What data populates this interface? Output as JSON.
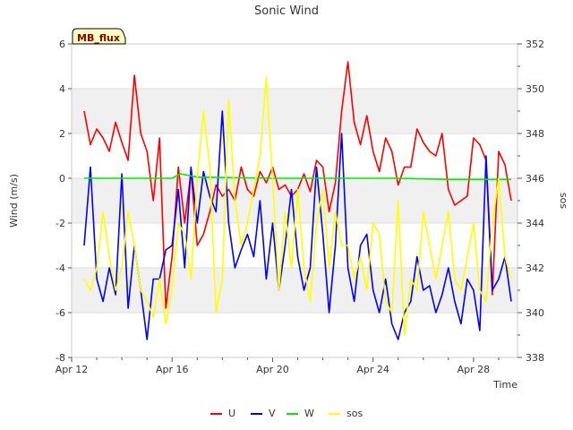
{
  "chart_data": {
    "type": "line",
    "title": "Sonic Wind",
    "xlabel": "Time",
    "ylabel_left": "Wind (m/s)",
    "ylabel_right": "sos",
    "annotation": "MB_flux",
    "x_range": [
      "2024-04-12",
      "2024-04-29T18:00"
    ],
    "x_ticks": [
      "Apr 12",
      "Apr 16",
      "Apr 20",
      "Apr 24",
      "Apr 28"
    ],
    "ylim_left": [
      -8,
      6
    ],
    "yticks_left": [
      -8,
      -6,
      -4,
      -2,
      0,
      2,
      4,
      6
    ],
    "ylim_right": [
      338,
      352
    ],
    "yticks_right": [
      338,
      340,
      342,
      344,
      346,
      348,
      350,
      352
    ],
    "grid": true,
    "legend_position": "bottom-center",
    "series": [
      {
        "name": "U",
        "color": "#ff0000",
        "axis": "left",
        "x": [
          "2024-04-12T12:00",
          "2024-04-12T18:00",
          "2024-04-13T00:00",
          "2024-04-13T06:00",
          "2024-04-13T12:00",
          "2024-04-13T18:00",
          "2024-04-14T00:00",
          "2024-04-14T06:00",
          "2024-04-14T12:00",
          "2024-04-14T18:00",
          "2024-04-15T00:00",
          "2024-04-15T06:00",
          "2024-04-15T12:00",
          "2024-04-15T18:00",
          "2024-04-16T00:00",
          "2024-04-16T06:00",
          "2024-04-16T12:00",
          "2024-04-16T18:00",
          "2024-04-17T00:00",
          "2024-04-17T06:00",
          "2024-04-17T12:00",
          "2024-04-17T18:00",
          "2024-04-18T00:00",
          "2024-04-18T06:00",
          "2024-04-18T12:00",
          "2024-04-18T18:00",
          "2024-04-19T00:00",
          "2024-04-19T06:00",
          "2024-04-19T12:00",
          "2024-04-19T18:00",
          "2024-04-20T00:00",
          "2024-04-20T06:00",
          "2024-04-20T12:00",
          "2024-04-20T18:00",
          "2024-04-21T00:00",
          "2024-04-21T06:00",
          "2024-04-21T12:00",
          "2024-04-21T18:00",
          "2024-04-22T00:00",
          "2024-04-22T06:00",
          "2024-04-22T12:00",
          "2024-04-22T18:00",
          "2024-04-23T00:00",
          "2024-04-23T06:00",
          "2024-04-23T12:00",
          "2024-04-23T18:00",
          "2024-04-24T00:00",
          "2024-04-24T06:00",
          "2024-04-24T12:00",
          "2024-04-24T18:00",
          "2024-04-25T00:00",
          "2024-04-25T06:00",
          "2024-04-25T12:00",
          "2024-04-25T18:00",
          "2024-04-26T00:00",
          "2024-04-26T06:00",
          "2024-04-26T12:00",
          "2024-04-26T18:00",
          "2024-04-27T00:00",
          "2024-04-27T06:00",
          "2024-04-27T12:00",
          "2024-04-27T18:00",
          "2024-04-28T00:00",
          "2024-04-28T06:00",
          "2024-04-28T12:00",
          "2024-04-28T18:00",
          "2024-04-29T00:00",
          "2024-04-29T06:00",
          "2024-04-29T12:00"
        ],
        "values": [
          3.0,
          1.5,
          2.2,
          1.8,
          1.2,
          2.5,
          1.6,
          0.8,
          4.6,
          2.0,
          1.2,
          -1.0,
          1.8,
          -5.8,
          -3.5,
          0.5,
          -2.0,
          0.3,
          -3.0,
          -2.5,
          -1.5,
          -0.3,
          -0.8,
          -0.5,
          -1.0,
          0.5,
          -0.5,
          -0.8,
          0.3,
          -0.2,
          0.5,
          -0.5,
          -0.3,
          -0.8,
          -0.5,
          0.2,
          -0.6,
          0.8,
          0.5,
          -1.5,
          -0.2,
          3.0,
          5.2,
          2.5,
          1.5,
          2.8,
          1.2,
          0.3,
          1.8,
          1.2,
          -0.3,
          0.5,
          0.5,
          2.2,
          1.6,
          1.2,
          1.0,
          2.0,
          -0.5,
          -1.2,
          -1.0,
          -0.8,
          1.8,
          1.5,
          0.8,
          -5.2,
          1.2,
          0.6,
          -1.0
        ]
      },
      {
        "name": "V",
        "color": "#0000ff",
        "axis": "left",
        "x": [
          "2024-04-12T12:00",
          "2024-04-12T18:00",
          "2024-04-13T00:00",
          "2024-04-13T06:00",
          "2024-04-13T12:00",
          "2024-04-13T18:00",
          "2024-04-14T00:00",
          "2024-04-14T06:00",
          "2024-04-14T12:00",
          "2024-04-14T18:00",
          "2024-04-15T00:00",
          "2024-04-15T06:00",
          "2024-04-15T12:00",
          "2024-04-15T18:00",
          "2024-04-16T00:00",
          "2024-04-16T06:00",
          "2024-04-16T12:00",
          "2024-04-16T18:00",
          "2024-04-17T00:00",
          "2024-04-17T06:00",
          "2024-04-17T12:00",
          "2024-04-17T18:00",
          "2024-04-18T00:00",
          "2024-04-18T06:00",
          "2024-04-18T12:00",
          "2024-04-18T18:00",
          "2024-04-19T00:00",
          "2024-04-19T06:00",
          "2024-04-19T12:00",
          "2024-04-19T18:00",
          "2024-04-20T00:00",
          "2024-04-20T06:00",
          "2024-04-20T12:00",
          "2024-04-20T18:00",
          "2024-04-21T00:00",
          "2024-04-21T06:00",
          "2024-04-21T12:00",
          "2024-04-21T18:00",
          "2024-04-22T00:00",
          "2024-04-22T06:00",
          "2024-04-22T12:00",
          "2024-04-22T18:00",
          "2024-04-23T00:00",
          "2024-04-23T06:00",
          "2024-04-23T12:00",
          "2024-04-23T18:00",
          "2024-04-24T00:00",
          "2024-04-24T06:00",
          "2024-04-24T12:00",
          "2024-04-24T18:00",
          "2024-04-25T00:00",
          "2024-04-25T06:00",
          "2024-04-25T12:00",
          "2024-04-25T18:00",
          "2024-04-26T00:00",
          "2024-04-26T06:00",
          "2024-04-26T12:00",
          "2024-04-26T18:00",
          "2024-04-27T00:00",
          "2024-04-27T06:00",
          "2024-04-27T12:00",
          "2024-04-27T18:00",
          "2024-04-28T00:00",
          "2024-04-28T06:00",
          "2024-04-28T12:00",
          "2024-04-28T18:00",
          "2024-04-29T00:00",
          "2024-04-29T06:00",
          "2024-04-29T12:00"
        ],
        "values": [
          -3.0,
          0.5,
          -4.5,
          -5.5,
          -4.0,
          -5.2,
          0.2,
          -5.8,
          -3.0,
          -5.0,
          -7.2,
          -4.5,
          -4.5,
          -3.2,
          -3.0,
          -0.5,
          -4.0,
          0.5,
          -2.0,
          0.3,
          -0.8,
          -1.5,
          3.0,
          -2.0,
          -4.0,
          -3.2,
          -2.5,
          -3.5,
          -1.0,
          -4.5,
          -2.0,
          -5.0,
          -3.0,
          -0.5,
          -3.5,
          -5.0,
          -4.0,
          0.5,
          -2.5,
          -6.0,
          -3.0,
          2.0,
          -4.0,
          -5.5,
          -3.0,
          -2.5,
          -5.0,
          -6.0,
          -4.5,
          -6.5,
          -7.2,
          -6.0,
          -5.5,
          -3.5,
          -5.0,
          -4.8,
          -6.0,
          -5.2,
          -4.0,
          -5.5,
          -6.5,
          -4.5,
          -5.0,
          -6.8,
          1.0,
          -5.0,
          -4.5,
          -3.5,
          -5.5
        ]
      },
      {
        "name": "W",
        "color": "#00ee00",
        "axis": "left",
        "x": [
          "2024-04-12T12:00",
          "2024-04-14T00:00",
          "2024-04-16T00:00",
          "2024-04-16T08:00",
          "2024-04-17T00:00",
          "2024-04-20T00:00",
          "2024-04-23T00:00",
          "2024-04-25T00:00",
          "2024-04-27T00:00",
          "2024-04-29T12:00"
        ],
        "values": [
          0.0,
          0.0,
          0.0,
          0.2,
          0.05,
          0.0,
          0.0,
          0.0,
          -0.05,
          -0.05
        ]
      },
      {
        "name": "sos",
        "color": "#ffff00",
        "axis": "right",
        "x": [
          "2024-04-12T12:00",
          "2024-04-12T18:00",
          "2024-04-13T00:00",
          "2024-04-13T06:00",
          "2024-04-13T12:00",
          "2024-04-13T18:00",
          "2024-04-14T00:00",
          "2024-04-14T06:00",
          "2024-04-14T12:00",
          "2024-04-14T18:00",
          "2024-04-15T00:00",
          "2024-04-15T06:00",
          "2024-04-15T12:00",
          "2024-04-15T18:00",
          "2024-04-16T00:00",
          "2024-04-16T06:00",
          "2024-04-16T12:00",
          "2024-04-16T18:00",
          "2024-04-17T00:00",
          "2024-04-17T06:00",
          "2024-04-17T12:00",
          "2024-04-17T18:00",
          "2024-04-18T00:00",
          "2024-04-18T06:00",
          "2024-04-18T12:00",
          "2024-04-18T18:00",
          "2024-04-19T00:00",
          "2024-04-19T06:00",
          "2024-04-19T12:00",
          "2024-04-19T18:00",
          "2024-04-20T00:00",
          "2024-04-20T06:00",
          "2024-04-20T12:00",
          "2024-04-20T18:00",
          "2024-04-21T00:00",
          "2024-04-21T06:00",
          "2024-04-21T12:00",
          "2024-04-21T18:00",
          "2024-04-22T00:00",
          "2024-04-22T06:00",
          "2024-04-22T12:00",
          "2024-04-22T18:00",
          "2024-04-23T00:00",
          "2024-04-23T06:00",
          "2024-04-23T12:00",
          "2024-04-23T18:00",
          "2024-04-24T00:00",
          "2024-04-24T06:00",
          "2024-04-24T12:00",
          "2024-04-24T18:00",
          "2024-04-25T00:00",
          "2024-04-25T06:00",
          "2024-04-25T12:00",
          "2024-04-25T18:00",
          "2024-04-26T00:00",
          "2024-04-26T06:00",
          "2024-04-26T12:00",
          "2024-04-26T18:00",
          "2024-04-27T00:00",
          "2024-04-27T06:00",
          "2024-04-27T12:00",
          "2024-04-27T18:00",
          "2024-04-28T00:00",
          "2024-04-28T06:00",
          "2024-04-28T12:00",
          "2024-04-28T18:00",
          "2024-04-29T00:00",
          "2024-04-29T06:00",
          "2024-04-29T12:00"
        ],
        "values": [
          341.5,
          341.0,
          342.0,
          344.5,
          342.5,
          341.0,
          342.0,
          344.5,
          343.0,
          341.0,
          340.5,
          339.8,
          341.5,
          339.5,
          341.0,
          344.0,
          343.5,
          341.5,
          346.0,
          349.0,
          346.5,
          340.0,
          341.5,
          349.5,
          345.0,
          343.0,
          344.0,
          345.5,
          347.0,
          350.5,
          346.0,
          341.0,
          344.5,
          342.0,
          345.5,
          342.0,
          340.5,
          344.0,
          345.5,
          342.0,
          344.5,
          343.0,
          343.0,
          341.5,
          342.5,
          341.0,
          344.0,
          343.5,
          340.5,
          340.0,
          345.0,
          339.0,
          341.5,
          341.0,
          344.5,
          343.0,
          341.5,
          343.0,
          344.5,
          341.5,
          341.0,
          342.5,
          344.0,
          341.0,
          340.5,
          344.0,
          346.0,
          342.5,
          341.5
        ]
      }
    ]
  }
}
